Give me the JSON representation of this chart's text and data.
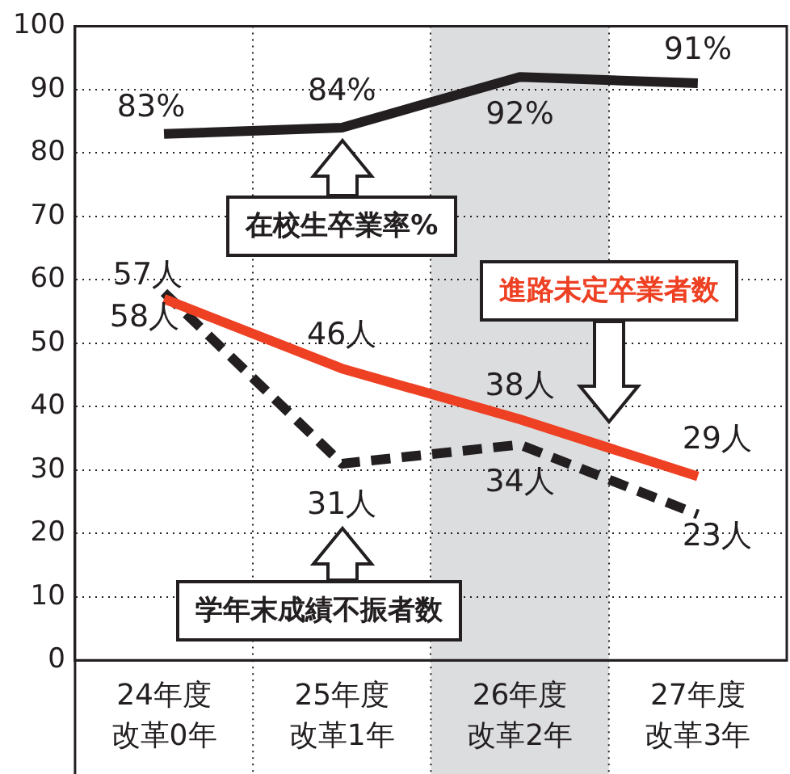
{
  "chart_data": {
    "type": "line",
    "categories": [
      "24年度改革0年",
      "25年度改革1年",
      "26年度改革2年",
      "27年度改革3年"
    ],
    "ylim": [
      0,
      100
    ],
    "yticks": [
      0,
      10,
      20,
      30,
      40,
      50,
      60,
      70,
      80,
      90,
      100
    ],
    "grid": true,
    "legend": "left",
    "marker": "none",
    "series": [
      {
        "name": "在校生卒業率%",
        "color": "#231f20",
        "line_style": "solid",
        "values": [
          83,
          84,
          92,
          91
        ],
        "value_labels": [
          "83%",
          "84%",
          "92%",
          "91%"
        ]
      },
      {
        "name": "進路未定卒業者数",
        "color": "#ee4023",
        "line_style": "solid",
        "values": [
          57,
          46,
          38,
          29
        ],
        "value_labels": [
          "57人",
          "46人",
          "38人",
          "29人"
        ]
      },
      {
        "name": "学年末成績不振者数",
        "color": "#231f20",
        "line_style": "dashed",
        "values": [
          58,
          31,
          34,
          23
        ],
        "value_labels": [
          "58人",
          "31人",
          "34人",
          "23人"
        ]
      }
    ],
    "bands": [
      {
        "axis": "x",
        "from": "26年度改革2年",
        "to": "26年度改革2年",
        "color": "#dcdddf"
      }
    ]
  }
}
